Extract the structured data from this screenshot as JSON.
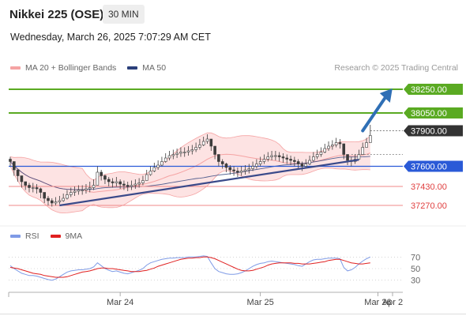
{
  "header": {
    "title": "Nikkei 225 (OSE)",
    "interval": "30 MIN",
    "datetime": "Wednesday, March 26, 2025 7:07:29 AM CET",
    "credit": "Research © 2025 Trading Central"
  },
  "legend": {
    "bollinger": "MA 20 + Bollinger Bands",
    "ma50": "MA 50",
    "rsi": "RSI",
    "rsi_ma": "9MA"
  },
  "colors": {
    "bollinger": "#f5a3a3",
    "bollinger_fill": "#fde3e3",
    "ma50": "#2b3f7a",
    "trendline": "#3a4a8a",
    "resistance": "#5aaa22",
    "support": "#2a5ad7",
    "minor_level": "#f08a8a",
    "price_label": "#333333",
    "candle": "#3c3c3c",
    "rsi": "#7f9be6",
    "rsi_ma": "#e02020"
  },
  "chart_data": [
    {
      "type": "candlestick",
      "title": "Nikkei 225 (OSE)",
      "ylim": [
        37170,
        38350
      ],
      "x_ticks": [
        "Mar 24",
        "Mar 25",
        "Mar 26",
        "Apr 2"
      ],
      "levels": [
        {
          "value": 38250,
          "label": "38250.00",
          "kind": "resistance"
        },
        {
          "value": 38050,
          "label": "38050.00",
          "kind": "resistance"
        },
        {
          "value": 37900,
          "label": "37900.00",
          "kind": "current"
        },
        {
          "value": 37600,
          "label": "37600.00",
          "kind": "pivot"
        },
        {
          "value": 37430,
          "label": "37430.00",
          "kind": "support"
        },
        {
          "value": 37270,
          "label": "37270.00",
          "kind": "support"
        }
      ],
      "trendline": {
        "from": {
          "bar": 13,
          "value": 37270
        },
        "to": {
          "bar": 92,
          "value": 37655
        }
      },
      "forecast_arrow": {
        "from": {
          "bar": 93,
          "value": 37900
        },
        "to": {
          "bar": 100,
          "value": 38230
        }
      },
      "closes": [
        37640,
        37570,
        37520,
        37470,
        37440,
        37420,
        37420,
        37410,
        37380,
        37330,
        37310,
        37290,
        37300,
        37310,
        37330,
        37360,
        37380,
        37390,
        37400,
        37400,
        37410,
        37420,
        37440,
        37550,
        37520,
        37490,
        37470,
        37460,
        37470,
        37450,
        37440,
        37430,
        37440,
        37450,
        37460,
        37480,
        37530,
        37560,
        37590,
        37610,
        37640,
        37670,
        37690,
        37700,
        37710,
        37720,
        37720,
        37730,
        37740,
        37760,
        37780,
        37810,
        37830,
        37770,
        37700,
        37640,
        37620,
        37590,
        37570,
        37560,
        37550,
        37560,
        37570,
        37580,
        37600,
        37620,
        37640,
        37660,
        37680,
        37690,
        37690,
        37680,
        37670,
        37660,
        37650,
        37640,
        37620,
        37600,
        37620,
        37650,
        37680,
        37700,
        37720,
        37750,
        37770,
        37780,
        37800,
        37790,
        37700,
        37650,
        37640,
        37660,
        37700,
        37760,
        37800,
        37860
      ],
      "highs": [
        37680,
        37620,
        37560,
        37510,
        37470,
        37460,
        37460,
        37450,
        37420,
        37370,
        37350,
        37330,
        37340,
        37350,
        37370,
        37400,
        37420,
        37430,
        37440,
        37440,
        37450,
        37470,
        37490,
        37600,
        37570,
        37530,
        37510,
        37500,
        37510,
        37490,
        37480,
        37470,
        37480,
        37490,
        37500,
        37520,
        37570,
        37600,
        37630,
        37650,
        37680,
        37710,
        37730,
        37740,
        37750,
        37760,
        37760,
        37770,
        37780,
        37800,
        37830,
        37850,
        37870,
        37810,
        37740,
        37680,
        37660,
        37630,
        37610,
        37600,
        37590,
        37600,
        37610,
        37620,
        37640,
        37660,
        37680,
        37700,
        37720,
        37730,
        37730,
        37720,
        37710,
        37700,
        37690,
        37680,
        37660,
        37640,
        37660,
        37690,
        37720,
        37740,
        37760,
        37790,
        37810,
        37820,
        37840,
        37830,
        37750,
        37690,
        37680,
        37700,
        37740,
        37800,
        37840,
        37950
      ],
      "lows": [
        37600,
        37520,
        37470,
        37420,
        37400,
        37380,
        37380,
        37370,
        37330,
        37290,
        37270,
        37260,
        37270,
        37280,
        37300,
        37320,
        37340,
        37350,
        37360,
        37360,
        37370,
        37380,
        37400,
        37500,
        37480,
        37450,
        37430,
        37420,
        37430,
        37410,
        37400,
        37390,
        37400,
        37410,
        37420,
        37440,
        37490,
        37520,
        37550,
        37570,
        37600,
        37630,
        37650,
        37660,
        37670,
        37680,
        37680,
        37690,
        37700,
        37720,
        37740,
        37770,
        37790,
        37730,
        37660,
        37600,
        37580,
        37550,
        37530,
        37520,
        37510,
        37520,
        37530,
        37540,
        37560,
        37580,
        37600,
        37620,
        37640,
        37650,
        37650,
        37640,
        37630,
        37620,
        37610,
        37600,
        37580,
        37560,
        37580,
        37610,
        37640,
        37660,
        37680,
        37710,
        37730,
        37740,
        37760,
        37750,
        37660,
        37610,
        37600,
        37620,
        37660,
        37720,
        37760,
        37820
      ]
    },
    {
      "type": "line",
      "title": "RSI",
      "ylim": [
        20,
        80
      ],
      "y_ticks": [
        70,
        50,
        30
      ],
      "series": [
        {
          "name": "RSI",
          "values": [
            55,
            50,
            46,
            42,
            40,
            38,
            38,
            37,
            35,
            33,
            31,
            30,
            32,
            36,
            40,
            44,
            46,
            47,
            48,
            48,
            49,
            50,
            53,
            60,
            55,
            50,
            47,
            45,
            46,
            44,
            42,
            41,
            43,
            45,
            47,
            50,
            56,
            60,
            62,
            64,
            66,
            67,
            68,
            68,
            69,
            69,
            69,
            70,
            70,
            70,
            71,
            72,
            71,
            60,
            50,
            45,
            43,
            41,
            40,
            40,
            41,
            43,
            46,
            50,
            54,
            57,
            59,
            60,
            62,
            63,
            62,
            61,
            60,
            59,
            58,
            57,
            55,
            54,
            58,
            62,
            65,
            66,
            66,
            67,
            68,
            68,
            68,
            67,
            52,
            46,
            48,
            52,
            58,
            63,
            67,
            70
          ]
        },
        {
          "name": "9MA",
          "values": [
            52,
            51,
            50,
            48,
            46,
            44,
            42,
            41,
            40,
            38,
            37,
            36,
            35,
            35,
            35,
            36,
            38,
            40,
            42,
            44,
            45,
            46,
            48,
            50,
            51,
            51,
            50,
            50,
            49,
            48,
            47,
            46,
            45,
            45,
            45,
            46,
            47,
            49,
            51,
            54,
            56,
            58,
            60,
            62,
            64,
            66,
            67,
            68,
            68,
            69,
            69,
            70,
            70,
            69,
            67,
            64,
            61,
            58,
            55,
            52,
            49,
            47,
            46,
            46,
            47,
            49,
            51,
            53,
            56,
            58,
            59,
            60,
            60,
            60,
            60,
            59,
            59,
            58,
            58,
            58,
            59,
            60,
            61,
            62,
            64,
            65,
            66,
            66,
            64,
            62,
            60,
            59,
            58,
            58,
            59,
            60
          ]
        }
      ]
    }
  ]
}
